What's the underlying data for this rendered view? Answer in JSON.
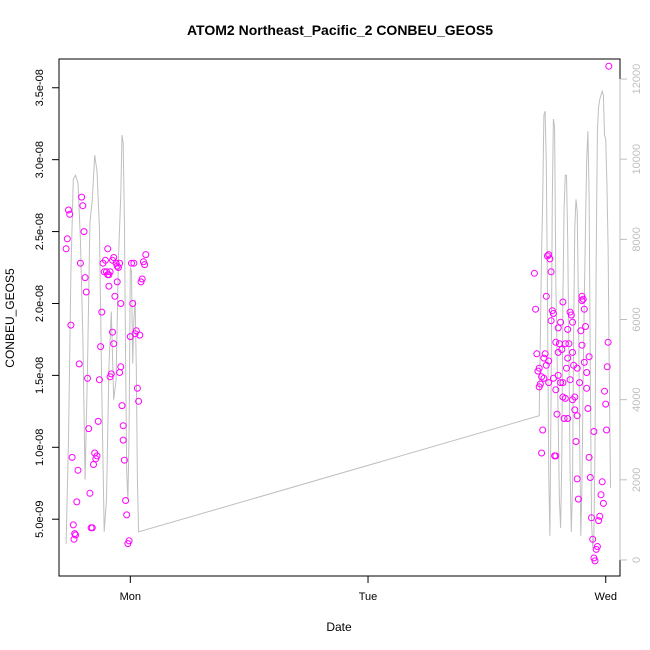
{
  "chart_data": {
    "type": "scatter",
    "title": "ATOM2 Northeast_Pacific_2 CONBEU_GEOS5",
    "xlabel": "Date",
    "ylabel": "CONBEU_GEOS5",
    "x_ticks": [
      {
        "x": 1.0,
        "label": "Mon"
      },
      {
        "x": 2.0,
        "label": "Tue"
      },
      {
        "x": 3.0,
        "label": "Wed"
      }
    ],
    "xlim": [
      0.7,
      3.06
    ],
    "y_ticks": [
      {
        "y": 5e-09,
        "label": "5.0e-09"
      },
      {
        "y": 1e-08,
        "label": "1.0e-08"
      },
      {
        "y": 1.5e-08,
        "label": "1.5e-08"
      },
      {
        "y": 2e-08,
        "label": "2.0e-08"
      },
      {
        "y": 2.5e-08,
        "label": "2.5e-08"
      },
      {
        "y": 3e-08,
        "label": "3.0e-08"
      },
      {
        "y": 3.5e-08,
        "label": "3.5e-08"
      }
    ],
    "ylim": [
      1.05e-09,
      3.7e-08
    ],
    "y2_ticks": [
      {
        "y": 0,
        "label": "0"
      },
      {
        "y": 2000,
        "label": "2000"
      },
      {
        "y": 4000,
        "label": "4000"
      },
      {
        "y": 6000,
        "label": "6000"
      },
      {
        "y": 8000,
        "label": "8000"
      },
      {
        "y": 10000,
        "label": "10000"
      },
      {
        "y": 12000,
        "label": "12000"
      }
    ],
    "y2lim": [
      -400,
      12500
    ],
    "point_color": "#ff00ff",
    "line_color": "#bfbfbf",
    "grid": false,
    "legend": "none",
    "series": [
      {
        "type": "scatter",
        "axis": "left",
        "points": [
          [
            0.73,
            2.38e-08
          ],
          [
            0.735,
            2.45e-08
          ],
          [
            0.74,
            2.65e-08
          ],
          [
            0.745,
            2.62e-08
          ],
          [
            0.75,
            1.85e-08
          ],
          [
            0.755,
            9.3e-09
          ],
          [
            0.76,
            4.6e-09
          ],
          [
            0.763,
            3.6e-09
          ],
          [
            0.766,
            4e-09
          ],
          [
            0.77,
            3.9e-09
          ],
          [
            0.775,
            6.2e-09
          ],
          [
            0.78,
            8.4e-09
          ],
          [
            0.785,
            1.58e-08
          ],
          [
            0.79,
            2.28e-08
          ],
          [
            0.795,
            2.74e-08
          ],
          [
            0.8,
            2.68e-08
          ],
          [
            0.805,
            2.5e-08
          ],
          [
            0.81,
            2.18e-08
          ],
          [
            0.815,
            2.08e-08
          ],
          [
            0.82,
            1.48e-08
          ],
          [
            0.825,
            1.13e-08
          ],
          [
            0.83,
            6.8e-09
          ],
          [
            0.835,
            4.4e-09
          ],
          [
            0.84,
            4.4e-09
          ],
          [
            0.845,
            8.8e-09
          ],
          [
            0.85,
            9.6e-09
          ],
          [
            0.855,
            9.2e-09
          ],
          [
            0.86,
            9.4e-09
          ],
          [
            0.865,
            1.18e-08
          ],
          [
            0.87,
            1.47e-08
          ],
          [
            0.875,
            1.7e-08
          ],
          [
            0.88,
            1.94e-08
          ],
          [
            0.885,
            2.28e-08
          ],
          [
            0.89,
            2.22e-08
          ],
          [
            0.895,
            2.3e-08
          ],
          [
            0.9,
            2.22e-08
          ],
          [
            0.905,
            2.38e-08
          ],
          [
            0.91,
            2.12e-08
          ],
          [
            0.915,
            1.49e-08
          ],
          [
            0.92,
            1.51e-08
          ],
          [
            0.925,
            1.8e-08
          ],
          [
            0.93,
            1.72e-08
          ],
          [
            0.935,
            2.05e-08
          ],
          [
            0.94,
            2.28e-08
          ],
          [
            0.945,
            2.26e-08
          ],
          [
            0.95,
            2.25e-08
          ],
          [
            0.955,
            2.28e-08
          ],
          [
            0.96,
            2e-08
          ],
          [
            0.965,
            1.29e-08
          ],
          [
            0.97,
            1.15e-08
          ],
          [
            0.975,
            9.1e-09
          ],
          [
            0.98,
            6.3e-09
          ],
          [
            0.985,
            5.3e-09
          ],
          [
            0.99,
            3.3e-09
          ],
          [
            0.995,
            3.5e-09
          ],
          [
            1.0,
            1.77e-08
          ],
          [
            1.005,
            2.28e-08
          ],
          [
            1.01,
            2e-08
          ],
          [
            1.015,
            2.28e-08
          ],
          [
            1.02,
            1.79e-08
          ],
          [
            1.025,
            1.81e-08
          ],
          [
            1.03,
            1.41e-08
          ],
          [
            1.035,
            1.32e-08
          ],
          [
            1.04,
            1.78e-08
          ],
          [
            1.045,
            2.15e-08
          ],
          [
            1.05,
            2.17e-08
          ],
          [
            1.055,
            2.29e-08
          ],
          [
            1.06,
            2.27e-08
          ],
          [
            1.065,
            2.34e-08
          ],
          [
            0.905,
            2.2e-08
          ],
          [
            0.91,
            2.2e-08
          ],
          [
            0.915,
            2.22e-08
          ],
          [
            0.925,
            2.3e-08
          ],
          [
            0.93,
            2.32e-08
          ],
          [
            0.945,
            2.15e-08
          ],
          [
            0.955,
            1.52e-08
          ],
          [
            0.96,
            1.56e-08
          ],
          [
            0.97,
            1.05e-08
          ],
          [
            2.7,
            2.21e-08
          ],
          [
            2.705,
            1.96e-08
          ],
          [
            2.71,
            1.65e-08
          ],
          [
            2.715,
            1.53e-08
          ],
          [
            2.72,
            1.55e-08
          ],
          [
            2.725,
            1.44e-08
          ],
          [
            2.73,
            9.6e-09
          ],
          [
            2.735,
            1.12e-08
          ],
          [
            2.74,
            1.48e-08
          ],
          [
            2.745,
            1.65e-08
          ],
          [
            2.75,
            2.05e-08
          ],
          [
            2.755,
            2.33e-08
          ],
          [
            2.76,
            2.34e-08
          ],
          [
            2.765,
            2.31e-08
          ],
          [
            2.77,
            2.22e-08
          ],
          [
            2.775,
            1.95e-08
          ],
          [
            2.78,
            1.48e-08
          ],
          [
            2.785,
            9.4e-09
          ],
          [
            2.79,
            9.4e-09
          ],
          [
            2.795,
            1.23e-08
          ],
          [
            2.8,
            1.5e-08
          ],
          [
            2.805,
            1.72e-08
          ],
          [
            2.81,
            1.87e-08
          ],
          [
            2.815,
            1.68e-08
          ],
          [
            2.82,
            1.45e-08
          ],
          [
            2.825,
            1.2e-08
          ],
          [
            2.83,
            1.34e-08
          ],
          [
            2.835,
            1.55e-08
          ],
          [
            2.84,
            1.62e-08
          ],
          [
            2.845,
            1.72e-08
          ],
          [
            2.85,
            1.94e-08
          ],
          [
            2.855,
            1.92e-08
          ],
          [
            2.86,
            1.87e-08
          ],
          [
            2.865,
            1.57e-08
          ],
          [
            2.87,
            1.26e-08
          ],
          [
            2.875,
            1.04e-08
          ],
          [
            2.88,
            7.8e-09
          ],
          [
            2.885,
            6.4e-09
          ],
          [
            2.89,
            1.45e-08
          ],
          [
            2.895,
            1.81e-08
          ],
          [
            2.9,
            2.02e-08
          ],
          [
            2.905,
            2.03e-08
          ],
          [
            2.91,
            1.96e-08
          ],
          [
            2.915,
            1.84e-08
          ],
          [
            2.92,
            1.52e-08
          ],
          [
            2.925,
            1.27e-08
          ],
          [
            2.93,
            9.3e-09
          ],
          [
            2.935,
            7.9e-09
          ],
          [
            2.94,
            5.1e-09
          ],
          [
            2.945,
            3.6e-09
          ],
          [
            2.95,
            2.3e-09
          ],
          [
            2.955,
            2.1e-09
          ],
          [
            2.96,
            2.9e-09
          ],
          [
            2.965,
            3.1e-09
          ],
          [
            2.97,
            4.9e-09
          ],
          [
            2.975,
            5.2e-09
          ],
          [
            2.98,
            6.7e-09
          ],
          [
            2.985,
            7.6e-09
          ],
          [
            2.99,
            6.1e-09
          ],
          [
            2.995,
            1.39e-08
          ],
          [
            3.0,
            1.3e-08
          ],
          [
            3.003,
            1.12e-08
          ],
          [
            3.006,
            1.56e-08
          ],
          [
            3.01,
            1.73e-08
          ],
          [
            3.013,
            3.65e-08
          ],
          [
            2.72,
            1.42e-08
          ],
          [
            2.73,
            1.49e-08
          ],
          [
            2.74,
            1.62e-08
          ],
          [
            2.75,
            1.57e-08
          ],
          [
            2.77,
            1.88e-08
          ],
          [
            2.79,
            1.4e-08
          ],
          [
            2.8,
            1.83e-08
          ],
          [
            2.81,
            1.45e-08
          ],
          [
            2.82,
            1.35e-08
          ],
          [
            2.83,
            1.72e-08
          ],
          [
            2.84,
            1.82e-08
          ],
          [
            2.86,
            1.66e-08
          ],
          [
            2.88,
            1.55e-08
          ],
          [
            2.9,
            1.71e-08
          ],
          [
            2.91,
            1.59e-08
          ],
          [
            2.92,
            1.41e-08
          ],
          [
            2.93,
            1.63e-08
          ],
          [
            2.95,
            1.11e-08
          ],
          [
            2.76,
            1.45e-08
          ],
          [
            2.78,
            1.93e-08
          ],
          [
            2.82,
            2.01e-08
          ],
          [
            2.84,
            1.2e-08
          ],
          [
            2.86,
            1.33e-08
          ],
          [
            2.88,
            1.22e-08
          ],
          [
            2.9,
            2.05e-08
          ],
          [
            2.8,
            1.66e-08
          ],
          [
            2.85,
            1.47e-08
          ],
          [
            2.87,
            1.35e-08
          ],
          [
            2.76,
            1.6e-08
          ],
          [
            2.79,
            1.73e-08
          ]
        ]
      },
      {
        "type": "line",
        "axis": "right",
        "points": [
          [
            0.73,
            400
          ],
          [
            0.74,
            3000
          ],
          [
            0.75,
            7200
          ],
          [
            0.76,
            9500
          ],
          [
            0.77,
            9600
          ],
          [
            0.78,
            9400
          ],
          [
            0.79,
            8000
          ],
          [
            0.8,
            5600
          ],
          [
            0.81,
            2000
          ],
          [
            0.82,
            4800
          ],
          [
            0.83,
            8400
          ],
          [
            0.84,
            9000
          ],
          [
            0.85,
            10100
          ],
          [
            0.86,
            9700
          ],
          [
            0.87,
            8300
          ],
          [
            0.88,
            4200
          ],
          [
            0.89,
            700
          ],
          [
            0.9,
            1500
          ],
          [
            0.91,
            4800
          ],
          [
            0.92,
            6200
          ],
          [
            0.93,
            4000
          ],
          [
            0.94,
            4500
          ],
          [
            0.95,
            7500
          ],
          [
            0.96,
            9100
          ],
          [
            0.965,
            10600
          ],
          [
            0.97,
            10400
          ],
          [
            0.975,
            8500
          ],
          [
            0.98,
            5000
          ],
          [
            0.985,
            2200
          ],
          [
            0.99,
            1500
          ],
          [
            0.995,
            3200
          ],
          [
            1.0,
            7300
          ],
          [
            1.005,
            7200
          ],
          [
            1.01,
            4900
          ],
          [
            1.015,
            6000
          ],
          [
            1.02,
            6500
          ],
          [
            1.025,
            4800
          ],
          [
            1.03,
            2000
          ],
          [
            1.035,
            700
          ],
          [
            2.72,
            3600
          ],
          [
            2.73,
            7700
          ],
          [
            2.735,
            9000
          ],
          [
            2.74,
            11100
          ],
          [
            2.745,
            11200
          ],
          [
            2.75,
            9900
          ],
          [
            2.755,
            6500
          ],
          [
            2.76,
            2200
          ],
          [
            2.765,
            600
          ],
          [
            2.77,
            4200
          ],
          [
            2.775,
            9000
          ],
          [
            2.78,
            11000
          ],
          [
            2.785,
            10800
          ],
          [
            2.79,
            7000
          ],
          [
            2.8,
            3500
          ],
          [
            2.805,
            1500
          ],
          [
            2.81,
            800
          ],
          [
            2.815,
            2500
          ],
          [
            2.82,
            6500
          ],
          [
            2.825,
            8800
          ],
          [
            2.83,
            9600
          ],
          [
            2.835,
            9600
          ],
          [
            2.84,
            8000
          ],
          [
            2.845,
            5200
          ],
          [
            2.85,
            2200
          ],
          [
            2.855,
            700
          ],
          [
            2.86,
            1800
          ],
          [
            2.865,
            5600
          ],
          [
            2.87,
            8300
          ],
          [
            2.875,
            9000
          ],
          [
            2.88,
            8700
          ],
          [
            2.885,
            6500
          ],
          [
            2.89,
            3200
          ],
          [
            2.895,
            600
          ],
          [
            2.9,
            1900
          ],
          [
            2.905,
            4600
          ],
          [
            2.91,
            6500
          ],
          [
            2.915,
            8300
          ],
          [
            2.92,
            10000
          ],
          [
            2.925,
            10700
          ],
          [
            2.93,
            9100
          ],
          [
            2.935,
            4700
          ],
          [
            2.94,
            1000
          ],
          [
            2.945,
            300
          ],
          [
            2.95,
            600
          ],
          [
            2.955,
            2800
          ],
          [
            2.96,
            7600
          ],
          [
            2.965,
            10700
          ],
          [
            2.97,
            11300
          ],
          [
            2.975,
            11500
          ],
          [
            2.98,
            11600
          ],
          [
            2.985,
            11700
          ],
          [
            2.99,
            11600
          ],
          [
            2.995,
            10600
          ],
          [
            3.0,
            10500
          ],
          [
            3.005,
            9400
          ],
          [
            3.01,
            7800
          ],
          [
            3.015,
            4600
          ],
          [
            3.02,
            1800
          ]
        ]
      }
    ]
  }
}
